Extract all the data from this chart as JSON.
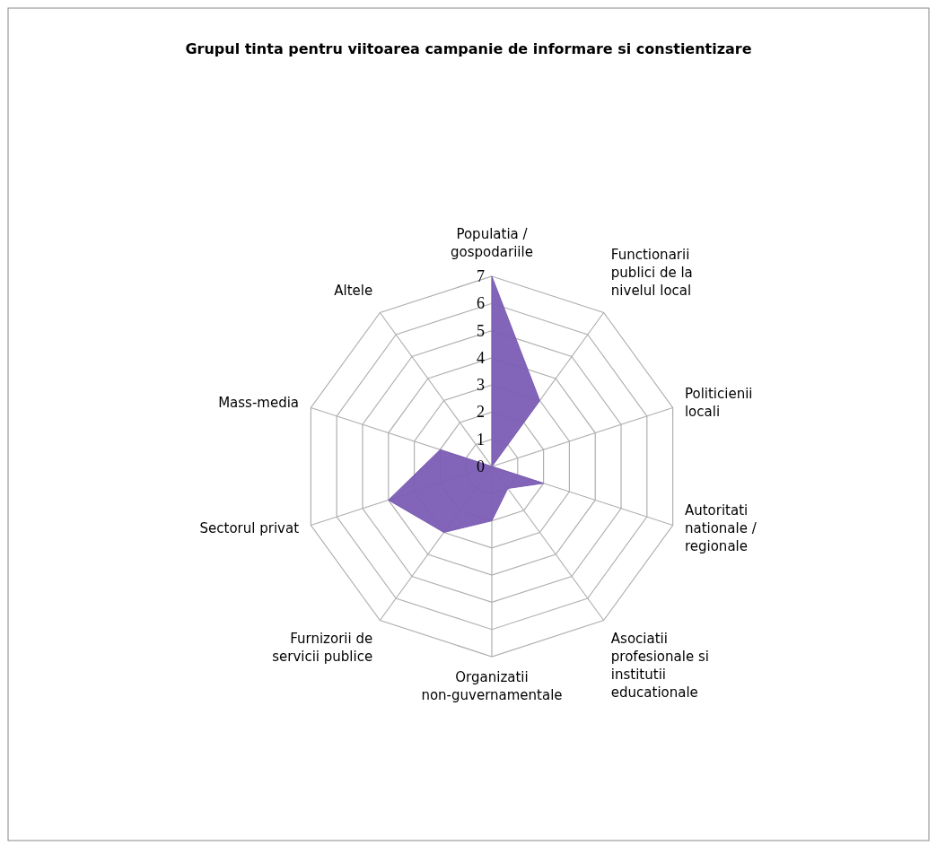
{
  "chart_data": {
    "type": "radar",
    "title": "Grupul tinta pentru viitoarea campanie de informare si constientizare",
    "categories": [
      "Populatia / gospodariile",
      "Functionarii publici de la nivelul local",
      "Politicienii locali",
      "Autoritati nationale / regionale",
      "Asociatii profesionale si institutii educationale",
      "Organizatii non-guvernamentale",
      "Furnizorii de servicii publice",
      "Sectorul privat",
      "Mass-media",
      "Altele"
    ],
    "series": [
      {
        "color": "#7b5cb4",
        "values": [
          7,
          3,
          0,
          2,
          1,
          2,
          3,
          4,
          2,
          0
        ]
      }
    ],
    "ylim": [
      0,
      7
    ],
    "yticks": [
      0,
      1,
      2,
      3,
      4,
      5,
      6,
      7
    ],
    "grid": true
  }
}
